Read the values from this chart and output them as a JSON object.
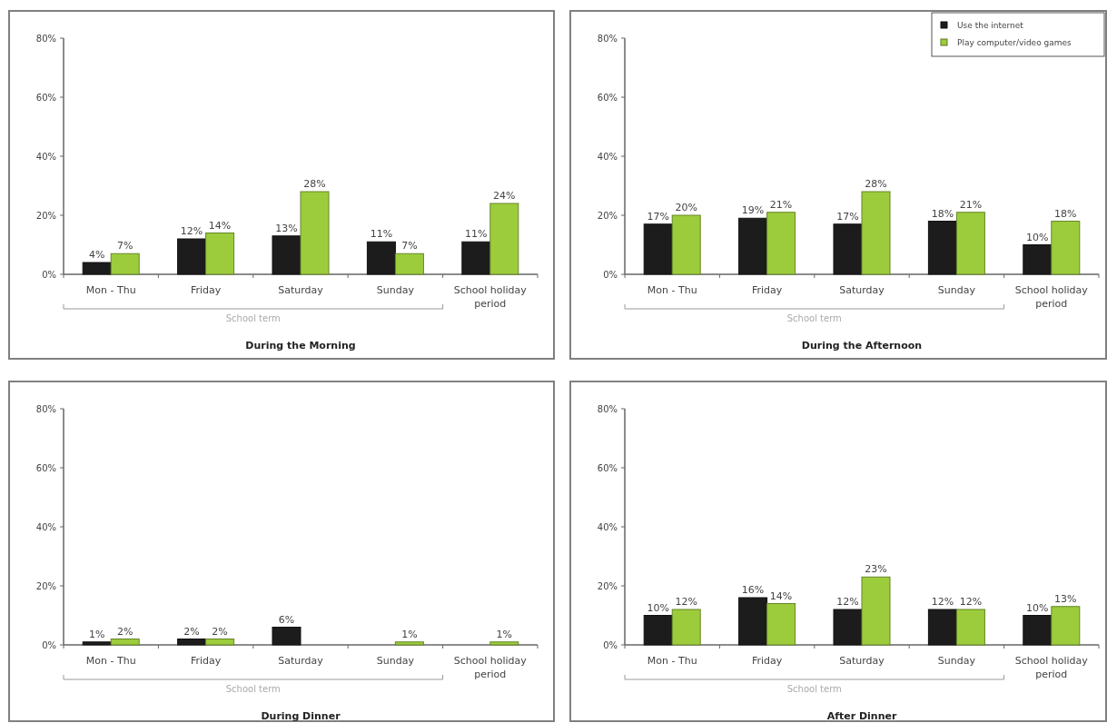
{
  "chart_data": [
    {
      "type": "bar",
      "title": "During the Morning",
      "categories": [
        "Mon - Thu",
        "Friday",
        "Saturday",
        "Sunday",
        "School holiday period"
      ],
      "series": [
        {
          "color": "#1c1c1c",
          "values": [
            4,
            12,
            13,
            11,
            11
          ],
          "value_labels": [
            "4%",
            "12%",
            "13%",
            "11%",
            "11%"
          ]
        },
        {
          "color": "#9ccc3c",
          "values": [
            7,
            14,
            28,
            7,
            24
          ],
          "value_labels": [
            "7%",
            "14%",
            "28%",
            "7%",
            "24%"
          ]
        }
      ],
      "ylim": [
        0,
        80
      ],
      "yticks": [
        {
          "value": 0,
          "label": "0%"
        },
        {
          "value": 20,
          "label": "20%"
        },
        {
          "value": 40,
          "label": "40%"
        },
        {
          "value": 60,
          "label": "60%"
        },
        {
          "value": 80,
          "label": "80%"
        }
      ],
      "annotations": [
        "School term"
      ]
    },
    {
      "type": "bar",
      "title": "During the Afternoon",
      "categories": [
        "Mon - Thu",
        "Friday",
        "Saturday",
        "Sunday",
        "School holiday period"
      ],
      "series": [
        {
          "name": "Use the internet",
          "color": "#1c1c1c",
          "values": [
            17,
            19,
            17,
            18,
            10
          ],
          "value_labels": [
            "17%",
            "19%",
            "17%",
            "18%",
            "10%"
          ]
        },
        {
          "name": "Play computer/video games",
          "color": "#9ccc3c",
          "values": [
            20,
            21,
            28,
            21,
            18
          ],
          "value_labels": [
            "20%",
            "21%",
            "28%",
            "21%",
            "18%"
          ]
        }
      ],
      "ylim": [
        0,
        80
      ],
      "yticks": [
        {
          "value": 0,
          "label": "0%"
        },
        {
          "value": 20,
          "label": "20%"
        },
        {
          "value": 40,
          "label": "40%"
        },
        {
          "value": 60,
          "label": "60%"
        },
        {
          "value": 80,
          "label": "80%"
        }
      ],
      "annotations": [
        "School term"
      ],
      "legend": "top right"
    },
    {
      "type": "bar",
      "title": "During Dinner",
      "categories": [
        "Mon - Thu",
        "Friday",
        "Saturday",
        "Sunday",
        "School holiday period"
      ],
      "series": [
        {
          "color": "#1c1c1c",
          "values": [
            1,
            2,
            6,
            null,
            null
          ],
          "value_labels": [
            "1%",
            "2%",
            "6%",
            null,
            null
          ]
        },
        {
          "color": "#9ccc3c",
          "values": [
            2,
            2,
            null,
            1,
            1
          ],
          "value_labels": [
            "2%",
            "2%",
            null,
            "1%",
            "1%"
          ]
        }
      ],
      "ylim": [
        0,
        80
      ],
      "yticks": [
        {
          "value": 0,
          "label": "0%"
        },
        {
          "value": 20,
          "label": "20%"
        },
        {
          "value": 40,
          "label": "40%"
        },
        {
          "value": 60,
          "label": "60%"
        },
        {
          "value": 80,
          "label": "80%"
        }
      ],
      "annotations": [
        "School term"
      ]
    },
    {
      "type": "bar",
      "title": "After Dinner",
      "categories": [
        "Mon - Thu",
        "Friday",
        "Saturday",
        "Sunday",
        "School holiday period"
      ],
      "series": [
        {
          "color": "#1c1c1c",
          "values": [
            10,
            16,
            12,
            12,
            10
          ],
          "value_labels": [
            "10%",
            "16%",
            "12%",
            "12%",
            "10%"
          ]
        },
        {
          "color": "#9ccc3c",
          "values": [
            12,
            14,
            23,
            12,
            13
          ],
          "value_labels": [
            "12%",
            "14%",
            "23%",
            "12%",
            "13%"
          ]
        }
      ],
      "ylim": [
        0,
        80
      ],
      "yticks": [
        {
          "value": 0,
          "label": "0%"
        },
        {
          "value": 20,
          "label": "20%"
        },
        {
          "value": 40,
          "label": "40%"
        },
        {
          "value": 60,
          "label": "60%"
        },
        {
          "value": 80,
          "label": "80%"
        }
      ],
      "annotations": [
        "School term"
      ]
    }
  ]
}
